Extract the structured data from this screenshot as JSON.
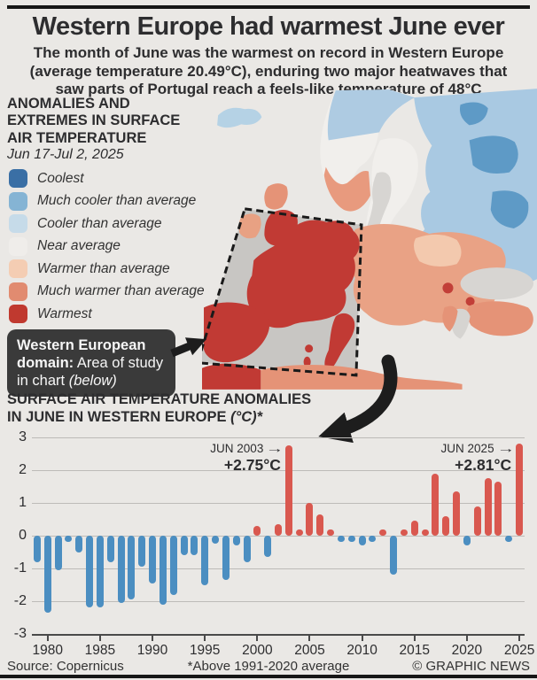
{
  "header": {
    "title": "Western Europe had warmest June ever",
    "subtitle": "The month of June was the warmest on record in Western Europe (average temperature 20.49°C), enduring two major heatwaves that saw parts of Portugal reach a feels-like temperature of 48°C"
  },
  "legend": {
    "title": "ANOMALIES AND EXTREMES IN SURFACE AIR TEMPERATURE",
    "date_range": "Jun 17-Jul 2, 2025",
    "items": [
      {
        "label": "Coolest",
        "color": "#3a6fa5"
      },
      {
        "label": "Much cooler than average",
        "color": "#85b4d4"
      },
      {
        "label": "Cooler than average",
        "color": "#c6dbe9"
      },
      {
        "label": "Near average",
        "color": "#efedea"
      },
      {
        "label": "Warmer than average",
        "color": "#f4cdb3"
      },
      {
        "label": "Much warmer than average",
        "color": "#e18b70"
      },
      {
        "label": "Warmest",
        "color": "#c0392f"
      }
    ]
  },
  "callout": {
    "bold": "Western European domain:",
    "text": " Area of study in chart ",
    "italic": "(below)"
  },
  "chart": {
    "title_line1": "SURFACE AIR TEMPERATURE ANOMALIES",
    "title_line2": "IN JUNE IN WESTERN EUROPE",
    "title_unit": "(°C)*"
  },
  "chart_data": {
    "type": "bar",
    "title": "Surface air temperature anomalies in June in Western Europe (°C), above 1991-2020 average",
    "x": [
      1979,
      1980,
      1981,
      1982,
      1983,
      1984,
      1985,
      1986,
      1987,
      1988,
      1989,
      1990,
      1991,
      1992,
      1993,
      1994,
      1995,
      1996,
      1997,
      1998,
      1999,
      2000,
      2001,
      2002,
      2003,
      2004,
      2005,
      2006,
      2007,
      2008,
      2009,
      2010,
      2011,
      2012,
      2013,
      2014,
      2015,
      2016,
      2017,
      2018,
      2019,
      2020,
      2021,
      2022,
      2023,
      2024,
      2025
    ],
    "values": [
      -0.8,
      -2.35,
      -1.05,
      -0.2,
      -0.5,
      -2.2,
      -2.2,
      -0.8,
      -2.05,
      -1.95,
      -0.95,
      -1.45,
      -2.1,
      -1.8,
      -0.6,
      -0.6,
      -1.5,
      -0.25,
      -1.35,
      -0.3,
      -0.8,
      0.3,
      -0.65,
      0.35,
      2.75,
      0.2,
      1.0,
      0.65,
      0.05,
      -0.2,
      -0.1,
      -0.3,
      -0.2,
      0.15,
      -1.2,
      0.1,
      0.45,
      0.1,
      1.9,
      0.6,
      1.35,
      -0.3,
      0.9,
      1.75,
      1.65,
      -0.1,
      2.81
    ],
    "ylim": [
      -3,
      3
    ],
    "yticks": [
      3,
      2,
      1,
      0,
      -1,
      -2,
      -3
    ],
    "xticks": [
      1980,
      1985,
      1990,
      1995,
      2000,
      2005,
      2010,
      2015,
      2020,
      2025
    ],
    "grid": true,
    "colors": {
      "positive": "#d9584f",
      "negative": "#4b8ec1"
    },
    "annotations": [
      {
        "label": "JUN 2003",
        "value": "+2.75°C",
        "year": 2003
      },
      {
        "label": "JUN 2025",
        "value": "+2.81°C",
        "year": 2025
      }
    ]
  },
  "footer": {
    "source": "Source: Copernicus",
    "note": "*Above 1991-2020 average",
    "credit": "© GRAPHIC NEWS"
  }
}
